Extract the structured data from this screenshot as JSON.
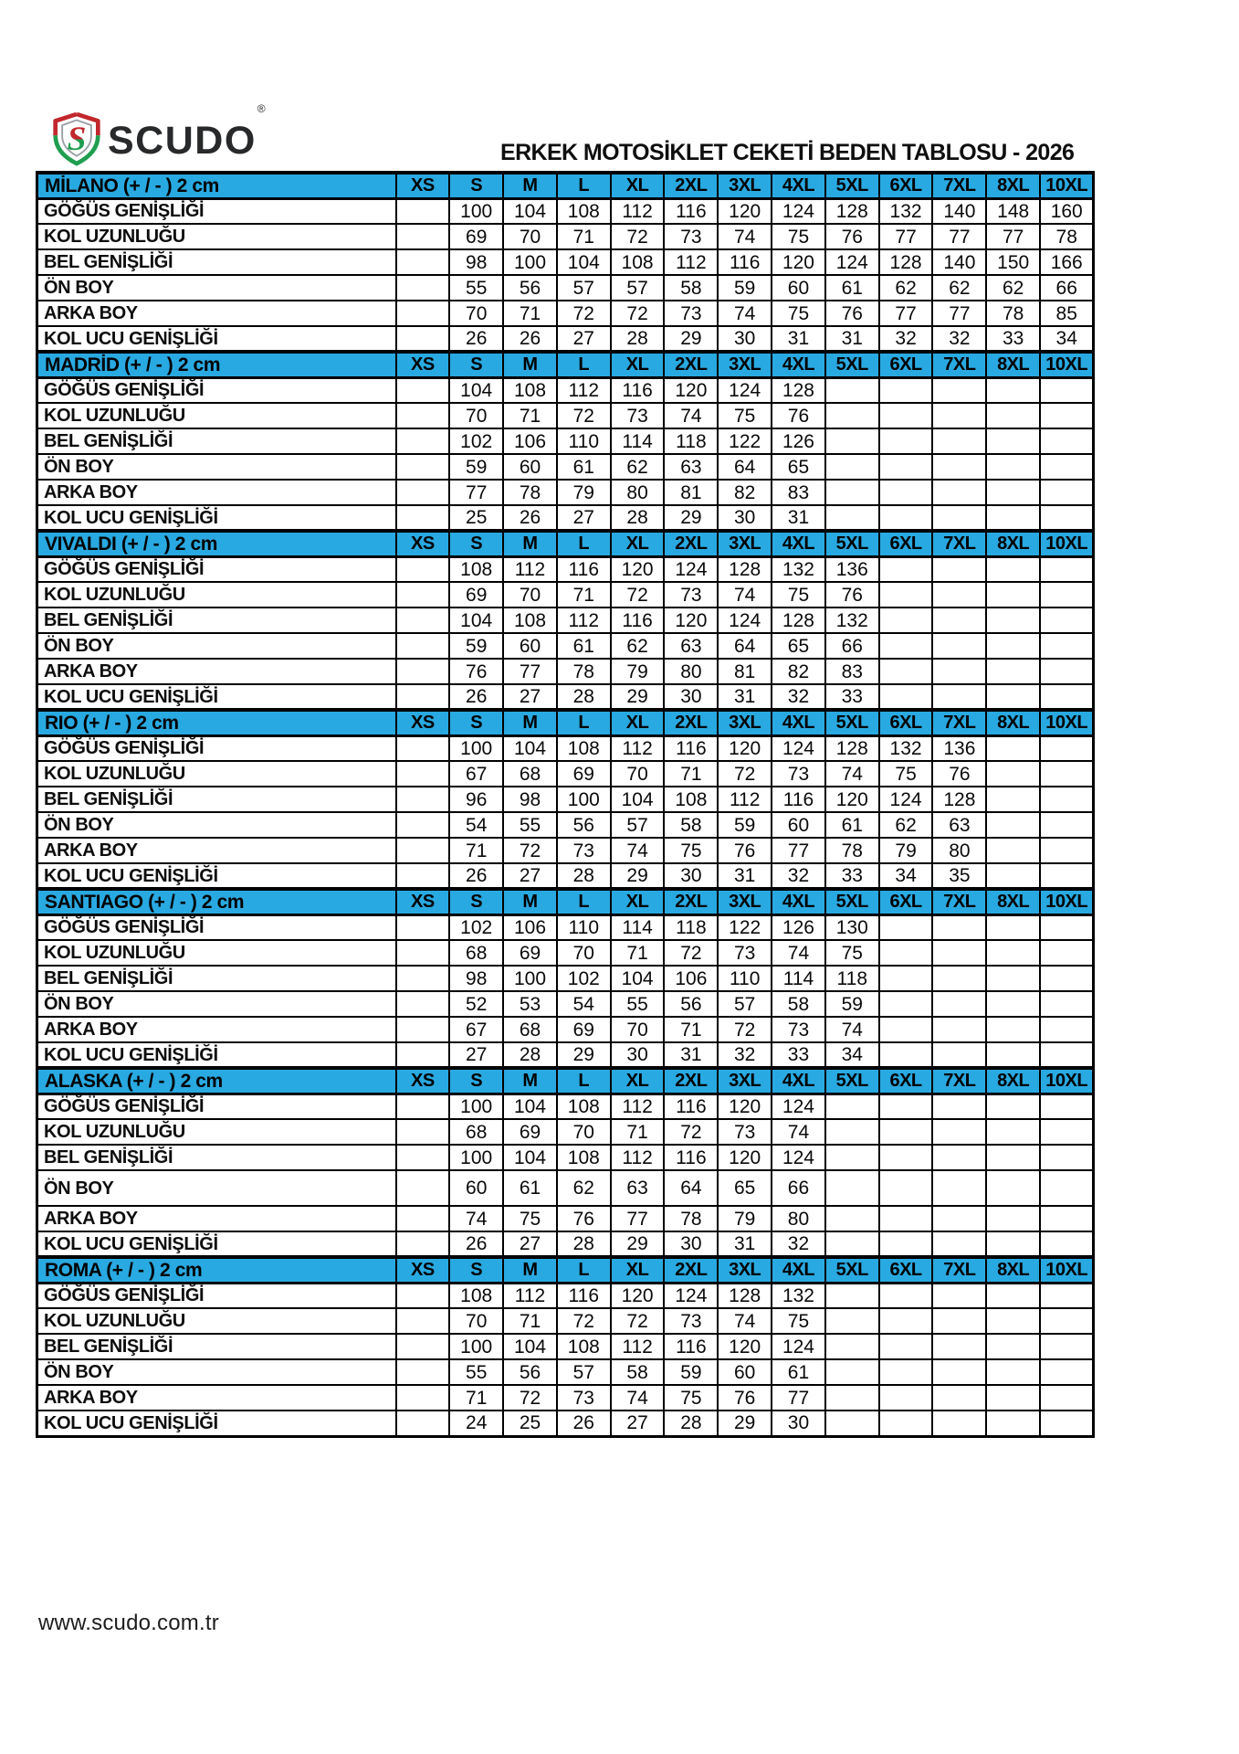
{
  "page": {
    "brand": "SCUDO",
    "brand_mark": "®",
    "title": "ERKEK MOTOSİKLET CEKETİ BEDEN TABLOSU - 2026",
    "footer": "www.scudo.com.tr",
    "accent_blue": "#29a9e1",
    "logo_red": "#c1272d",
    "logo_green": "#1f9e4f"
  },
  "sizes": [
    "XS",
    "S",
    "M",
    "L",
    "XL",
    "2XL",
    "3XL",
    "4XL",
    "5XL",
    "6XL",
    "7XL",
    "8XL",
    "10XL"
  ],
  "measurements": [
    "GÖĞÜS GENİŞLİĞİ",
    "KOL UZUNLUĞU",
    "BEL GENİŞLİĞİ",
    "ÖN BOY",
    "ARKA BOY",
    "KOL UCU GENİŞLİĞİ"
  ],
  "tables": [
    {
      "name": "MİLANO (+ / - ) 2 cm",
      "rows": [
        [
          "",
          "100",
          "104",
          "108",
          "112",
          "116",
          "120",
          "124",
          "128",
          "132",
          "140",
          "148",
          "160"
        ],
        [
          "",
          "69",
          "70",
          "71",
          "72",
          "73",
          "74",
          "75",
          "76",
          "77",
          "77",
          "77",
          "78"
        ],
        [
          "",
          "98",
          "100",
          "104",
          "108",
          "112",
          "116",
          "120",
          "124",
          "128",
          "140",
          "150",
          "166"
        ],
        [
          "",
          "55",
          "56",
          "57",
          "57",
          "58",
          "59",
          "60",
          "61",
          "62",
          "62",
          "62",
          "66"
        ],
        [
          "",
          "70",
          "71",
          "72",
          "72",
          "73",
          "74",
          "75",
          "76",
          "77",
          "77",
          "78",
          "85"
        ],
        [
          "",
          "26",
          "26",
          "27",
          "28",
          "29",
          "30",
          "31",
          "31",
          "32",
          "32",
          "33",
          "34"
        ]
      ]
    },
    {
      "name": "MADRİD (+ / - ) 2 cm",
      "rows": [
        [
          "",
          "104",
          "108",
          "112",
          "116",
          "120",
          "124",
          "128",
          "",
          "",
          "",
          "",
          ""
        ],
        [
          "",
          "70",
          "71",
          "72",
          "73",
          "74",
          "75",
          "76",
          "",
          "",
          "",
          "",
          ""
        ],
        [
          "",
          "102",
          "106",
          "110",
          "114",
          "118",
          "122",
          "126",
          "",
          "",
          "",
          "",
          ""
        ],
        [
          "",
          "59",
          "60",
          "61",
          "62",
          "63",
          "64",
          "65",
          "",
          "",
          "",
          "",
          ""
        ],
        [
          "",
          "77",
          "78",
          "79",
          "80",
          "81",
          "82",
          "83",
          "",
          "",
          "",
          "",
          ""
        ],
        [
          "",
          "25",
          "26",
          "27",
          "28",
          "29",
          "30",
          "31",
          "",
          "",
          "",
          "",
          ""
        ]
      ]
    },
    {
      "name": "VIVALDI (+ / - ) 2 cm",
      "rows": [
        [
          "",
          "108",
          "112",
          "116",
          "120",
          "124",
          "128",
          "132",
          "136",
          "",
          "",
          "",
          ""
        ],
        [
          "",
          "69",
          "70",
          "71",
          "72",
          "73",
          "74",
          "75",
          "76",
          "",
          "",
          "",
          ""
        ],
        [
          "",
          "104",
          "108",
          "112",
          "116",
          "120",
          "124",
          "128",
          "132",
          "",
          "",
          "",
          ""
        ],
        [
          "",
          "59",
          "60",
          "61",
          "62",
          "63",
          "64",
          "65",
          "66",
          "",
          "",
          "",
          ""
        ],
        [
          "",
          "76",
          "77",
          "78",
          "79",
          "80",
          "81",
          "82",
          "83",
          "",
          "",
          "",
          ""
        ],
        [
          "",
          "26",
          "27",
          "28",
          "29",
          "30",
          "31",
          "32",
          "33",
          "",
          "",
          "",
          ""
        ]
      ]
    },
    {
      "name": "RIO (+ / - ) 2 cm",
      "rows": [
        [
          "",
          "100",
          "104",
          "108",
          "112",
          "116",
          "120",
          "124",
          "128",
          "132",
          "136",
          "",
          ""
        ],
        [
          "",
          "67",
          "68",
          "69",
          "70",
          "71",
          "72",
          "73",
          "74",
          "75",
          "76",
          "",
          ""
        ],
        [
          "",
          "96",
          "98",
          "100",
          "104",
          "108",
          "112",
          "116",
          "120",
          "124",
          "128",
          "",
          ""
        ],
        [
          "",
          "54",
          "55",
          "56",
          "57",
          "58",
          "59",
          "60",
          "61",
          "62",
          "63",
          "",
          ""
        ],
        [
          "",
          "71",
          "72",
          "73",
          "74",
          "75",
          "76",
          "77",
          "78",
          "79",
          "80",
          "",
          ""
        ],
        [
          "",
          "26",
          "27",
          "28",
          "29",
          "30",
          "31",
          "32",
          "33",
          "34",
          "35",
          "",
          ""
        ]
      ]
    },
    {
      "name": "SANTIAGO (+ / - ) 2 cm",
      "rows": [
        [
          "",
          "102",
          "106",
          "110",
          "114",
          "118",
          "122",
          "126",
          "130",
          "",
          "",
          "",
          ""
        ],
        [
          "",
          "68",
          "69",
          "70",
          "71",
          "72",
          "73",
          "74",
          "75",
          "",
          "",
          "",
          ""
        ],
        [
          "",
          "98",
          "100",
          "102",
          "104",
          "106",
          "110",
          "114",
          "118",
          "",
          "",
          "",
          ""
        ],
        [
          "",
          "52",
          "53",
          "54",
          "55",
          "56",
          "57",
          "58",
          "59",
          "",
          "",
          "",
          ""
        ],
        [
          "",
          "67",
          "68",
          "69",
          "70",
          "71",
          "72",
          "73",
          "74",
          "",
          "",
          "",
          ""
        ],
        [
          "",
          "27",
          "28",
          "29",
          "30",
          "31",
          "32",
          "33",
          "34",
          "",
          "",
          "",
          ""
        ]
      ]
    },
    {
      "name": "ALASKA (+ / - ) 2 cm",
      "rows": [
        [
          "",
          "100",
          "104",
          "108",
          "112",
          "116",
          "120",
          "124",
          "",
          "",
          "",
          "",
          ""
        ],
        [
          "",
          "68",
          "69",
          "70",
          "71",
          "72",
          "73",
          "74",
          "",
          "",
          "",
          "",
          ""
        ],
        [
          "",
          "100",
          "104",
          "108",
          "112",
          "116",
          "120",
          "124",
          "",
          "",
          "",
          "",
          ""
        ],
        [
          "",
          "60",
          "61",
          "62",
          "63",
          "64",
          "65",
          "66",
          "",
          "",
          "",
          "",
          ""
        ],
        [
          "",
          "74",
          "75",
          "76",
          "77",
          "78",
          "79",
          "80",
          "",
          "",
          "",
          "",
          ""
        ],
        [
          "",
          "26",
          "27",
          "28",
          "29",
          "30",
          "31",
          "32",
          "",
          "",
          "",
          "",
          ""
        ]
      ]
    },
    {
      "name": "ROMA (+ / - ) 2 cm",
      "rows": [
        [
          "",
          "108",
          "112",
          "116",
          "120",
          "124",
          "128",
          "132",
          "",
          "",
          "",
          "",
          ""
        ],
        [
          "",
          "70",
          "71",
          "72",
          "72",
          "73",
          "74",
          "75",
          "",
          "",
          "",
          "",
          ""
        ],
        [
          "",
          "100",
          "104",
          "108",
          "112",
          "116",
          "120",
          "124",
          "",
          "",
          "",
          "",
          ""
        ],
        [
          "",
          "55",
          "56",
          "57",
          "58",
          "59",
          "60",
          "61",
          "",
          "",
          "",
          "",
          ""
        ],
        [
          "",
          "71",
          "72",
          "73",
          "74",
          "75",
          "76",
          "77",
          "",
          "",
          "",
          "",
          ""
        ],
        [
          "",
          "24",
          "25",
          "26",
          "27",
          "28",
          "29",
          "30",
          "",
          "",
          "",
          "",
          ""
        ]
      ]
    }
  ]
}
